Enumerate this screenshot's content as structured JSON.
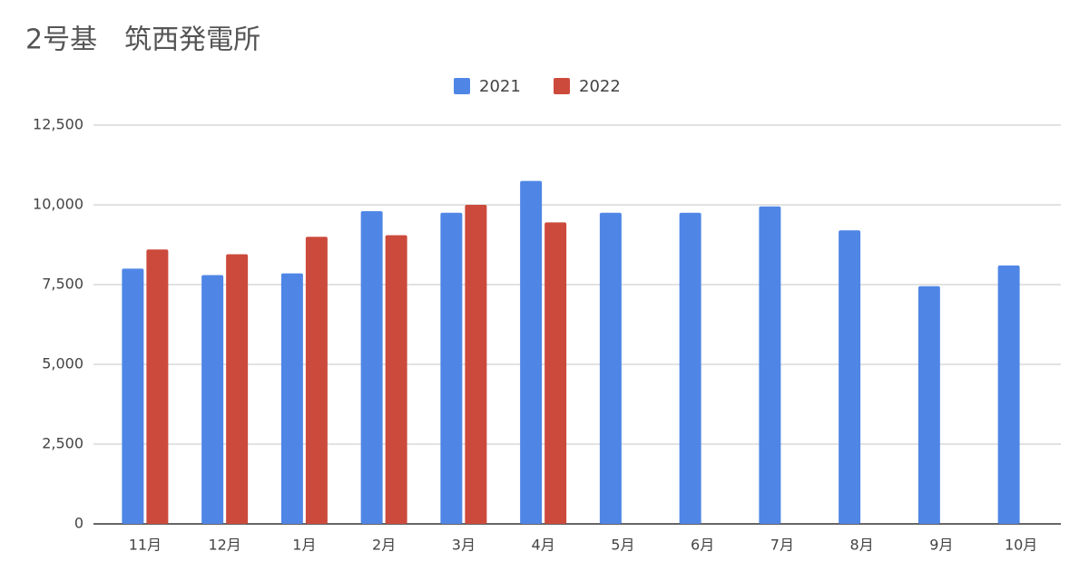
{
  "chart_data": {
    "type": "bar",
    "title": "2号基　筑西発電所",
    "categories": [
      "11月",
      "12月",
      "1月",
      "2月",
      "3月",
      "4月",
      "5月",
      "6月",
      "7月",
      "8月",
      "9月",
      "10月"
    ],
    "series": [
      {
        "name": "2021",
        "color": "#4f86e6",
        "values": [
          8000,
          7800,
          7850,
          9800,
          9750,
          10750,
          9750,
          9750,
          9950,
          9200,
          7450,
          8100
        ]
      },
      {
        "name": "2022",
        "color": "#cc4a3c",
        "values": [
          8600,
          8450,
          9000,
          9050,
          10000,
          9450,
          null,
          null,
          null,
          null,
          null,
          null
        ]
      }
    ],
    "ylim": [
      0,
      12500
    ],
    "yticks": [
      0,
      {
        "value": 2500,
        "label": "2,500"
      },
      {
        "value": 5000,
        "label": "5,000"
      },
      {
        "value": 7500,
        "label": "7,500"
      },
      {
        "value": 10000,
        "label": "10,000"
      },
      {
        "value": 12500,
        "label": "12,500"
      }
    ],
    "grid": true,
    "legend": "top"
  }
}
